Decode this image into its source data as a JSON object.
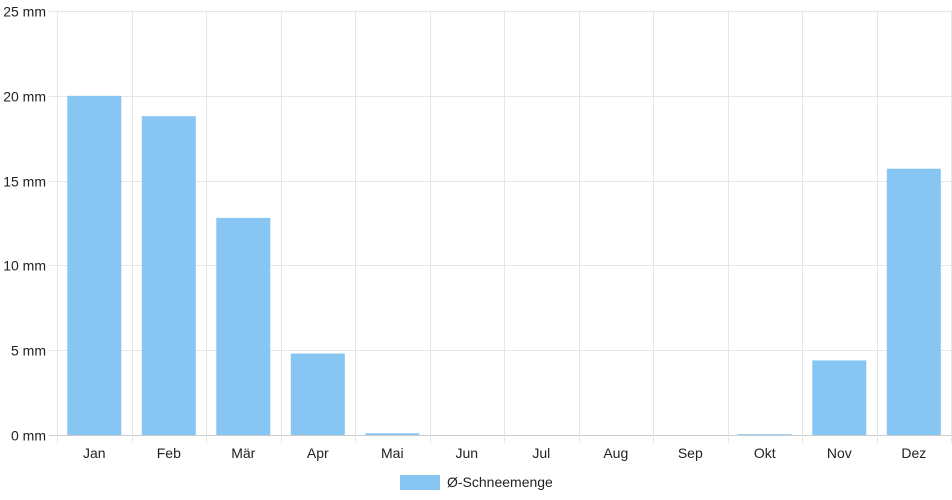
{
  "chart_data": {
    "type": "bar",
    "categories": [
      "Jan",
      "Feb",
      "Mär",
      "Apr",
      "Mai",
      "Jun",
      "Jul",
      "Aug",
      "Sep",
      "Okt",
      "Nov",
      "Dez"
    ],
    "series": [
      {
        "name": "Ø-Schneemenge",
        "values": [
          20.0,
          18.8,
          12.8,
          4.8,
          0.1,
          0,
          0,
          0,
          0,
          0.05,
          4.4,
          15.7
        ]
      }
    ],
    "title": "",
    "xlabel": "",
    "ylabel": "",
    "ylim": [
      0,
      25
    ],
    "yticks": [
      0,
      5,
      10,
      15,
      20,
      25
    ],
    "ytick_labels": [
      "0 mm",
      "5 mm",
      "10 mm",
      "15 mm",
      "20 mm",
      "25 mm"
    ],
    "grid": true,
    "legend_position": "bottom",
    "colors": {
      "bar": "#87c5f2",
      "grid": "#e6e6e6",
      "axis": "#cccccc"
    }
  }
}
